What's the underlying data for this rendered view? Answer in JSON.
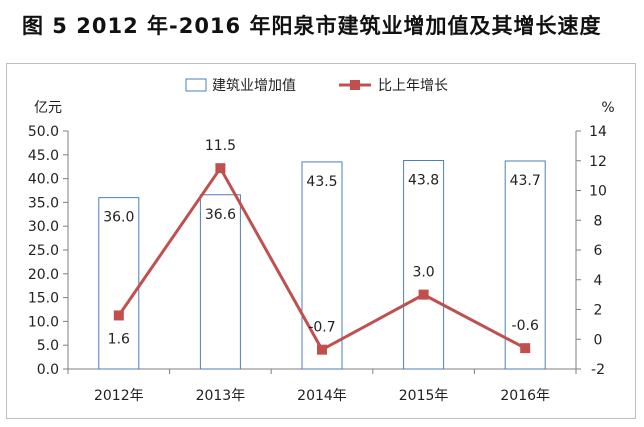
{
  "title": "图 5   2012 年-2016 年阳泉市建筑业增加值及其增长速度",
  "chart_data": {
    "type": "bar+line",
    "categories": [
      "2012年",
      "2013年",
      "2014年",
      "2015年",
      "2016年"
    ],
    "series": [
      {
        "name": "建筑业增加值",
        "type": "bar",
        "axis": "left",
        "values": [
          36.0,
          36.6,
          43.5,
          43.8,
          43.7
        ],
        "color": "#4a7ebb"
      },
      {
        "name": "比上年增长",
        "type": "line",
        "axis": "right",
        "values": [
          1.6,
          11.5,
          -0.7,
          3.0,
          -0.6
        ],
        "color": "#c0504d"
      }
    ],
    "y_left": {
      "label": "亿元",
      "min": 0,
      "max": 50,
      "step": 5,
      "ticks": [
        "0.0",
        "5.0",
        "10.0",
        "15.0",
        "20.0",
        "25.0",
        "30.0",
        "35.0",
        "40.0",
        "45.0",
        "50.0"
      ]
    },
    "y_right": {
      "label": "%",
      "min": -2,
      "max": 14,
      "step": 2,
      "ticks": [
        "-2",
        "0",
        "2",
        "4",
        "6",
        "8",
        "10",
        "12",
        "14"
      ]
    },
    "bar_labels": [
      "36.0",
      "36.6",
      "43.5",
      "43.8",
      "43.7"
    ],
    "line_labels": [
      "1.6",
      "11.5",
      "-0.7",
      "3.0",
      "-0.6"
    ],
    "legend": {
      "position": "top-center",
      "items": [
        "建筑业增加值",
        "比上年增长"
      ]
    },
    "grid": false
  }
}
